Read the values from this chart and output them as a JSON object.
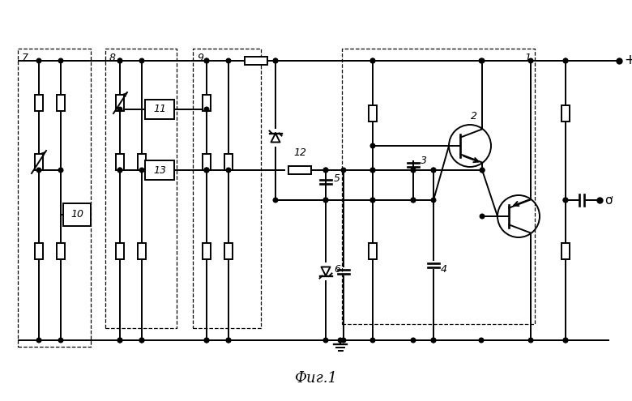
{
  "title": "Фиг.1",
  "bg_color": "#ffffff",
  "line_color": "#000000",
  "lw": 1.4,
  "fig_width": 7.8,
  "fig_height": 4.95,
  "dpi": 100
}
